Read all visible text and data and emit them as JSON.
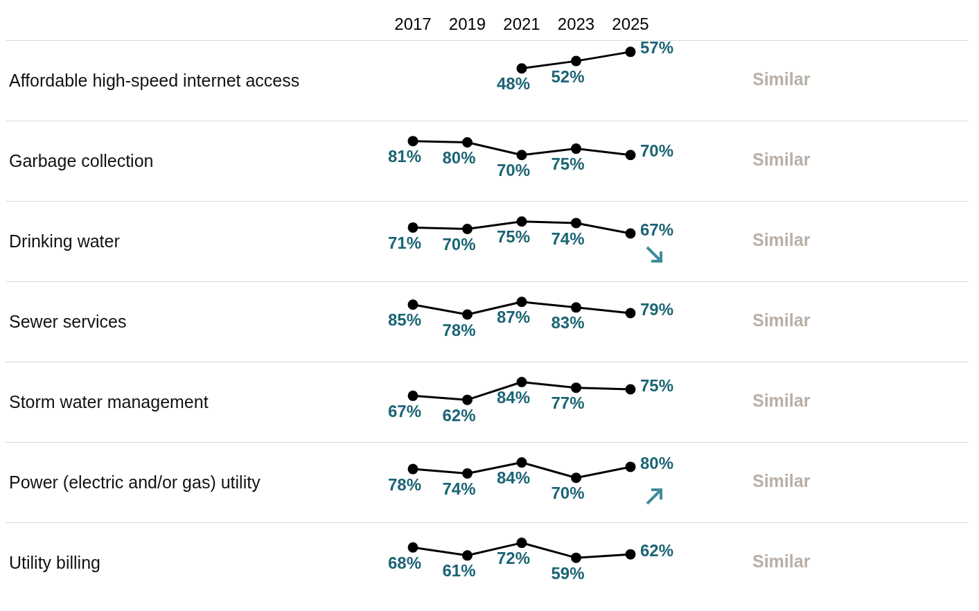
{
  "chart_data": [
    {
      "type": "line",
      "ylabel": "Affordable high-speed internet access",
      "categories": [
        "2017",
        "2019",
        "2021",
        "2023",
        "2025"
      ],
      "tick_labels": "x",
      "marker": "circle",
      "annotations": [
        "Similar"
      ],
      "series": [
        {
          "color": "#000000",
          "values": [
            null,
            null,
            48,
            52,
            57
          ],
          "value_labels": [
            null,
            null,
            "48%",
            "52%",
            "57%"
          ]
        }
      ]
    },
    {
      "type": "line",
      "ylabel": "Garbage collection",
      "categories": [
        "2017",
        "2019",
        "2021",
        "2023",
        "2025"
      ],
      "tick_labels": false,
      "marker": "circle",
      "annotations": [
        "Similar"
      ],
      "series": [
        {
          "color": "#000000",
          "values": [
            81,
            80,
            70,
            75,
            70
          ],
          "value_labels": [
            "81%",
            "80%",
            "70%",
            "75%",
            "70%"
          ]
        }
      ]
    },
    {
      "type": "line",
      "ylabel": "Drinking water",
      "categories": [
        "2017",
        "2019",
        "2021",
        "2023",
        "2025"
      ],
      "tick_labels": false,
      "marker": "circle",
      "annotations": [
        "Similar"
      ],
      "series": [
        {
          "color": "#000000",
          "values": [
            71,
            70,
            75,
            74,
            67
          ],
          "value_labels": [
            "71%",
            "70%",
            "75%",
            "74%",
            "67%"
          ]
        }
      ]
    },
    {
      "type": "line",
      "ylabel": "Sewer services",
      "categories": [
        "2017",
        "2019",
        "2021",
        "2023",
        "2025"
      ],
      "tick_labels": false,
      "marker": "circle",
      "annotations": [
        "Similar"
      ],
      "series": [
        {
          "color": "#000000",
          "values": [
            85,
            78,
            87,
            83,
            79
          ],
          "value_labels": [
            "85%",
            "78%",
            "87%",
            "83%",
            "79%"
          ]
        }
      ]
    },
    {
      "type": "line",
      "ylabel": "Storm water management",
      "categories": [
        "2017",
        "2019",
        "2021",
        "2023",
        "2025"
      ],
      "tick_labels": false,
      "marker": "circle",
      "annotations": [
        "Similar"
      ],
      "series": [
        {
          "color": "#000000",
          "values": [
            67,
            62,
            84,
            77,
            75
          ],
          "value_labels": [
            "67%",
            "62%",
            "84%",
            "77%",
            "75%"
          ]
        }
      ]
    },
    {
      "type": "line",
      "ylabel": "Power (electric and/or gas) utility",
      "categories": [
        "2017",
        "2019",
        "2021",
        "2023",
        "2025"
      ],
      "tick_labels": false,
      "marker": "circle",
      "annotations": [
        "Similar"
      ],
      "series": [
        {
          "color": "#000000",
          "values": [
            78,
            74,
            84,
            70,
            80
          ],
          "value_labels": [
            "78%",
            "74%",
            "84%",
            "70%",
            "80%"
          ]
        }
      ]
    },
    {
      "type": "line",
      "ylabel": "Utility billing",
      "categories": [
        "2017",
        "2019",
        "2021",
        "2023",
        "2025"
      ],
      "tick_labels": false,
      "marker": "circle",
      "annotations": [
        "Similar"
      ],
      "series": [
        {
          "color": "#000000",
          "values": [
            68,
            61,
            72,
            59,
            62
          ],
          "value_labels": [
            "68%",
            "61%",
            "72%",
            "59%",
            "62%"
          ]
        }
      ]
    }
  ]
}
